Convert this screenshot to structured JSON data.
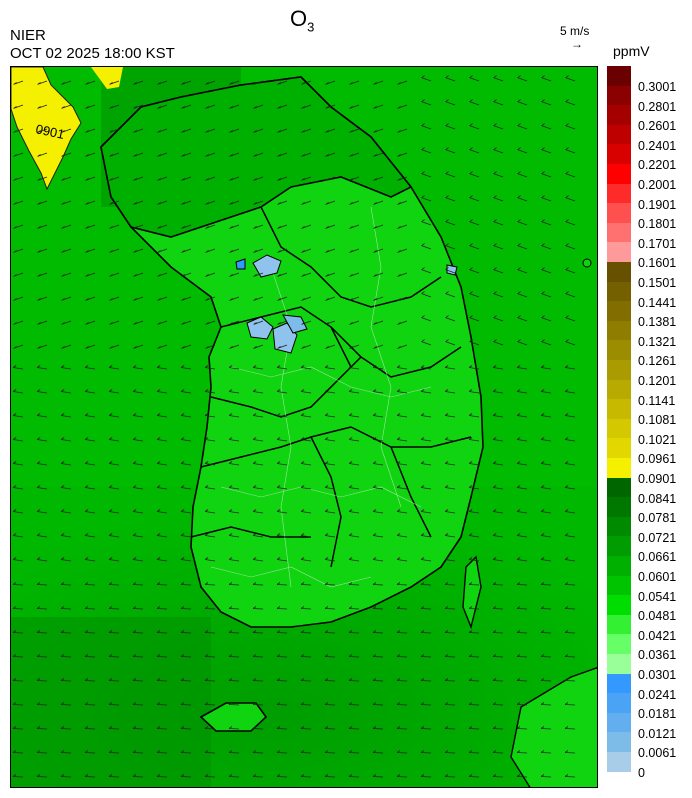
{
  "header": {
    "title_main": "O",
    "title_sub": "3",
    "agency": "NIER",
    "datetime": "OCT 02 2025 18:00 KST",
    "wind_reference": "5 m/s",
    "unit": "ppmV"
  },
  "map": {
    "contour_label": "0901"
  },
  "legend": {
    "bins": [
      {
        "label": "0.3001",
        "color": "#6b0000"
      },
      {
        "label": "0.2801",
        "color": "#8b0000"
      },
      {
        "label": "0.2601",
        "color": "#a50000"
      },
      {
        "label": "0.2401",
        "color": "#bf0000"
      },
      {
        "label": "0.2201",
        "color": "#d90000"
      },
      {
        "label": "0.2001",
        "color": "#ff0000"
      },
      {
        "label": "0.1901",
        "color": "#ff2a2a"
      },
      {
        "label": "0.1801",
        "color": "#ff5050"
      },
      {
        "label": "0.1701",
        "color": "#ff7070"
      },
      {
        "label": "0.1601",
        "color": "#ff9a9a"
      },
      {
        "label": "0.1501",
        "color": "#675100"
      },
      {
        "label": "0.1441",
        "color": "#756000"
      },
      {
        "label": "0.1381",
        "color": "#826e00"
      },
      {
        "label": "0.1321",
        "color": "#8f7d00"
      },
      {
        "label": "0.1261",
        "color": "#9c8c00"
      },
      {
        "label": "0.1201",
        "color": "#aa9b00"
      },
      {
        "label": "0.1141",
        "color": "#b8aa00"
      },
      {
        "label": "0.1081",
        "color": "#c6b900"
      },
      {
        "label": "0.1021",
        "color": "#d4c800"
      },
      {
        "label": "0.0961",
        "color": "#e2d800"
      },
      {
        "label": "0.0901",
        "color": "#f5f000"
      },
      {
        "label": "0.0841",
        "color": "#006600"
      },
      {
        "label": "0.0781",
        "color": "#007800"
      },
      {
        "label": "0.0721",
        "color": "#008a00"
      },
      {
        "label": "0.0661",
        "color": "#009c00"
      },
      {
        "label": "0.0601",
        "color": "#00b000"
      },
      {
        "label": "0.0541",
        "color": "#00c400"
      },
      {
        "label": "0.0481",
        "color": "#00dd00"
      },
      {
        "label": "0.0421",
        "color": "#33f033"
      },
      {
        "label": "0.0361",
        "color": "#66ff66"
      },
      {
        "label": "0.0301",
        "color": "#99ff99"
      },
      {
        "label": "0.0241",
        "color": "#3399ff"
      },
      {
        "label": "0.0181",
        "color": "#4aa3f5"
      },
      {
        "label": "0.0121",
        "color": "#62aeee"
      },
      {
        "label": "0.0061",
        "color": "#7dbbe8"
      },
      {
        "label": "0",
        "color": "#a8cde8"
      }
    ]
  }
}
